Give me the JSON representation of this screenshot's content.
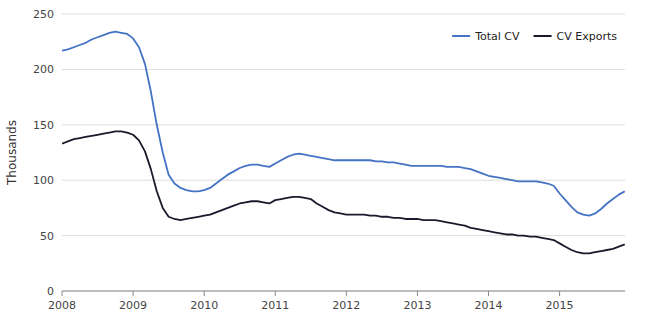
{
  "chart_data": {
    "type": "line",
    "ylabel": "Thousands",
    "x": [
      2008.0,
      2008.083,
      2008.167,
      2008.25,
      2008.333,
      2008.417,
      2008.5,
      2008.583,
      2008.667,
      2008.75,
      2008.833,
      2008.917,
      2009.0,
      2009.083,
      2009.167,
      2009.25,
      2009.333,
      2009.417,
      2009.5,
      2009.583,
      2009.667,
      2009.75,
      2009.833,
      2009.917,
      2010.0,
      2010.083,
      2010.167,
      2010.25,
      2010.333,
      2010.417,
      2010.5,
      2010.583,
      2010.667,
      2010.75,
      2010.833,
      2010.917,
      2011.0,
      2011.083,
      2011.167,
      2011.25,
      2011.333,
      2011.417,
      2011.5,
      2011.583,
      2011.667,
      2011.75,
      2011.833,
      2011.917,
      2012.0,
      2012.083,
      2012.167,
      2012.25,
      2012.333,
      2012.417,
      2012.5,
      2012.583,
      2012.667,
      2012.75,
      2012.833,
      2012.917,
      2013.0,
      2013.083,
      2013.167,
      2013.25,
      2013.333,
      2013.417,
      2013.5,
      2013.583,
      2013.667,
      2013.75,
      2013.833,
      2013.917,
      2014.0,
      2014.083,
      2014.167,
      2014.25,
      2014.333,
      2014.417,
      2014.5,
      2014.583,
      2014.667,
      2014.75,
      2014.833,
      2014.917,
      2015.0,
      2015.083,
      2015.167,
      2015.25,
      2015.333,
      2015.417,
      2015.5,
      2015.583,
      2015.667,
      2015.75,
      2015.833,
      2015.917
    ],
    "series": [
      {
        "name": "Total CV",
        "color": "#4472c4",
        "values": [
          217,
          218,
          220,
          222,
          224,
          227,
          229,
          231,
          233,
          234,
          233,
          232,
          228,
          220,
          205,
          180,
          150,
          125,
          105,
          97,
          93,
          91,
          90,
          90,
          91,
          93,
          97,
          101,
          105,
          108,
          111,
          113,
          114,
          114,
          113,
          112,
          115,
          118,
          121,
          123,
          124,
          123,
          122,
          121,
          120,
          119,
          118,
          118,
          118,
          118,
          118,
          118,
          118,
          117,
          117,
          116,
          116,
          115,
          114,
          113,
          113,
          113,
          113,
          113,
          113,
          112,
          112,
          112,
          111,
          110,
          108,
          106,
          104,
          103,
          102,
          101,
          100,
          99,
          99,
          99,
          99,
          98,
          97,
          95,
          88,
          82,
          76,
          71,
          69,
          68,
          70,
          74,
          79,
          83,
          87,
          90
        ]
      },
      {
        "name": "CV Exports",
        "color": "#1a1a2e",
        "values": [
          133,
          135,
          137,
          138,
          139,
          140,
          141,
          142,
          143,
          144,
          144,
          143,
          141,
          136,
          126,
          110,
          90,
          75,
          67,
          65,
          64,
          65,
          66,
          67,
          68,
          69,
          71,
          73,
          75,
          77,
          79,
          80,
          81,
          81,
          80,
          79,
          82,
          83,
          84,
          85,
          85,
          84,
          83,
          79,
          76,
          73,
          71,
          70,
          69,
          69,
          69,
          69,
          68,
          68,
          67,
          67,
          66,
          66,
          65,
          65,
          65,
          64,
          64,
          64,
          63,
          62,
          61,
          60,
          59,
          57,
          56,
          55,
          54,
          53,
          52,
          51,
          51,
          50,
          50,
          49,
          49,
          48,
          47,
          46,
          43,
          40,
          37,
          35,
          34,
          34,
          35,
          36,
          37,
          38,
          40,
          42
        ]
      }
    ],
    "xlim": [
      2008.0,
      2015.92
    ],
    "xticks": [
      2008,
      2009,
      2010,
      2011,
      2012,
      2013,
      2014,
      2015
    ],
    "ylim": [
      0,
      250
    ],
    "yticks": [
      0,
      50,
      100,
      150,
      200,
      250
    ],
    "grid": true,
    "legend": "top-right"
  }
}
